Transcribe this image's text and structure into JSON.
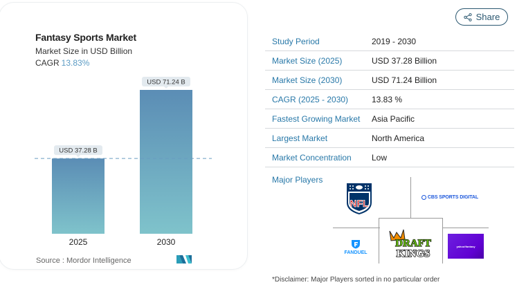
{
  "header": {
    "share_label": "Share",
    "share_icon": "share-nodes-icon"
  },
  "chart_card": {
    "title": "Fantasy Sports Market",
    "subtitle": "Market Size in USD Billion",
    "cagr_label": "CAGR",
    "cagr_value": "13.83%",
    "source": "Source :  Mordor Intelligence",
    "source_logo": "mordor-intelligence-logo"
  },
  "chart_data": {
    "type": "bar",
    "title": "Fantasy Sports Market",
    "subtitle": "Market Size in USD Billion",
    "categories": [
      "2025",
      "2030"
    ],
    "values": [
      37.28,
      71.24
    ],
    "data_labels": [
      "USD 37.28 B",
      "USD 71.24 B"
    ],
    "xlabel": "",
    "ylabel": "Market Size in USD Billion",
    "ylim": [
      0,
      71.24
    ],
    "grid": false,
    "reference_line": {
      "value": 37.28,
      "style": "dashed"
    },
    "colors": {
      "bar_top": "#5b8db5",
      "bar_bottom": "#7fc3cb",
      "label_bg": "#e3eaef",
      "ref_line": "#6a9cc0"
    }
  },
  "info": {
    "rows": [
      {
        "label": "Study Period",
        "value": "2019 - 2030"
      },
      {
        "label": "Market Size (2025)",
        "value": "USD 37.28 Billion"
      },
      {
        "label": "Market Size (2030)",
        "value": "USD 71.24 Billion"
      },
      {
        "label": "CAGR (2025 - 2030)",
        "value": "13.83 %"
      },
      {
        "label": "Fastest Growing Market",
        "value": "Asia Pacific"
      },
      {
        "label": "Largest Market",
        "value": "North America"
      },
      {
        "label": "Market Concentration",
        "value": "Low"
      }
    ]
  },
  "major_players": {
    "label": "Major Players",
    "logos": {
      "nfl": "NFL",
      "cbs": "CBS SPORTS DIGITAL",
      "fanduel": "FANDUEL",
      "draftkings_top": "DRAFT",
      "draftkings_bottom": "KINGS",
      "yahoo": "yahoo!fantasy"
    },
    "disclaimer": "*Disclaimer: Major Players sorted in no particular order"
  },
  "colors": {
    "accent_blue": "#2878a8",
    "cagr_blue": "#5b9bc4",
    "share_border": "#2a5770",
    "yahoo_purple": "#6001d2",
    "fanduel_blue": "#1493ff",
    "cbs_blue": "#1a56db",
    "nfl_blue": "#013369",
    "nfl_red": "#d50a0a",
    "draftkings_green": "#61b510",
    "draftkings_orange": "#f28d00"
  }
}
